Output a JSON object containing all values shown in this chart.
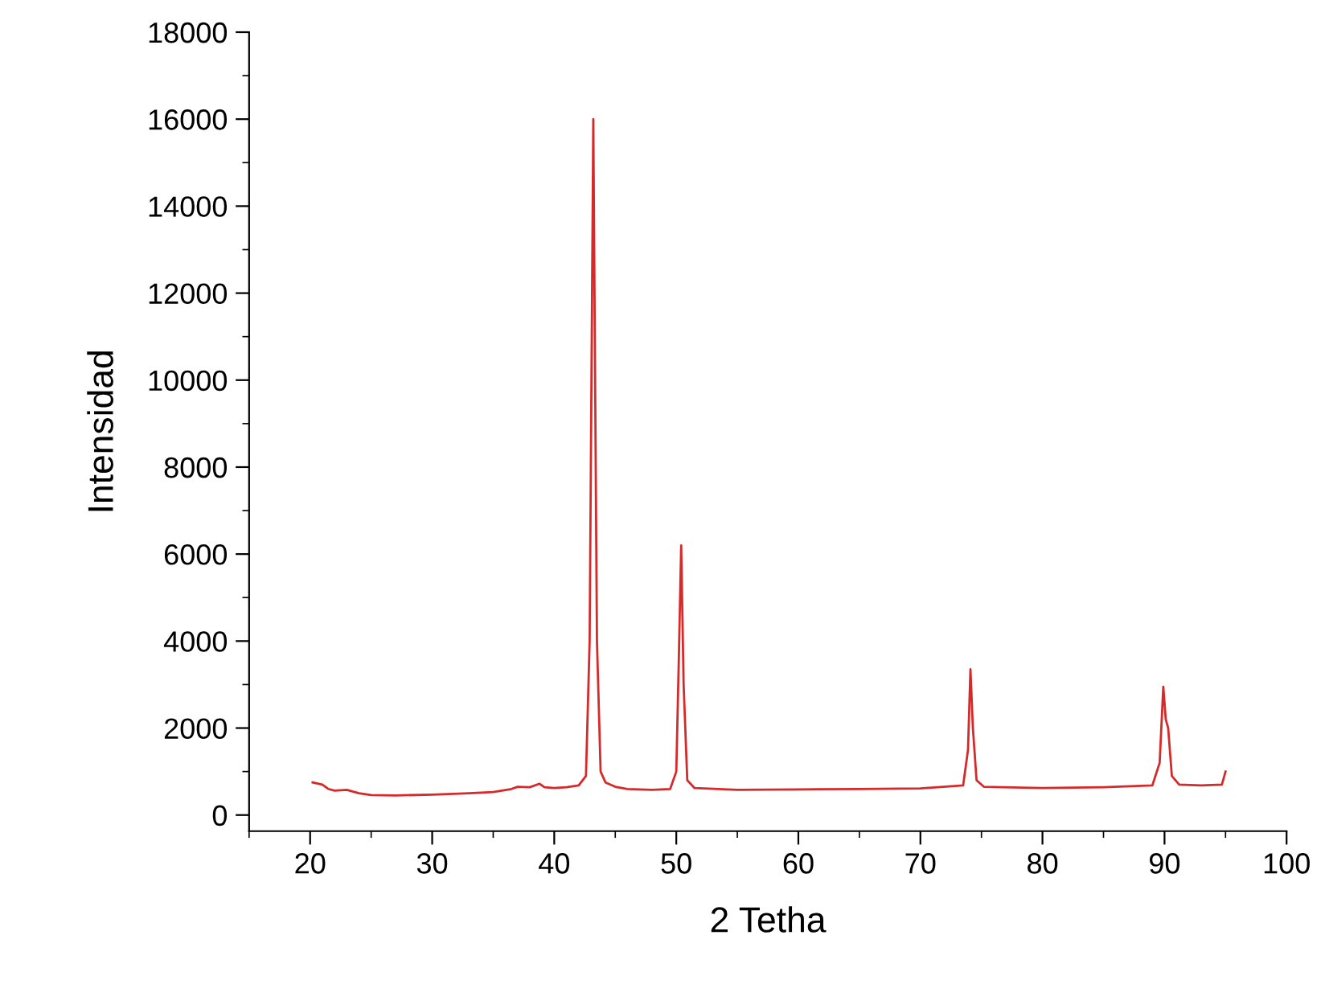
{
  "chart_data": {
    "type": "line",
    "xlabel": "2 Tetha",
    "ylabel": "Intensidad",
    "xlim": [
      15,
      100
    ],
    "ylim": [
      -370,
      18000
    ],
    "xticks": [
      20,
      30,
      40,
      50,
      60,
      70,
      80,
      90,
      100
    ],
    "yticks": [
      0,
      2000,
      4000,
      6000,
      8000,
      10000,
      12000,
      14000,
      16000,
      18000
    ],
    "grid": false,
    "legend": false,
    "marker": "none",
    "line_style": "solid",
    "series": [
      {
        "color": "#d62a2a",
        "x": [
          20.2,
          21,
          21.5,
          22,
          23,
          24,
          25,
          27,
          30,
          33,
          35,
          36.5,
          37,
          38,
          38.8,
          39.2,
          40,
          41,
          42,
          42.6,
          42.9,
          43.2,
          43.5,
          43.8,
          44.2,
          45,
          46,
          48,
          49.5,
          50,
          50.2,
          50.4,
          50.6,
          50.9,
          51.5,
          55,
          60,
          65,
          70,
          73.5,
          73.9,
          74.1,
          74.3,
          74.6,
          75.2,
          80,
          85,
          89,
          89.6,
          89.9,
          90.1,
          90.3,
          90.6,
          91.2,
          93,
          94.7,
          95
        ],
        "values": [
          750,
          700,
          600,
          560,
          580,
          500,
          460,
          450,
          470,
          500,
          530,
          600,
          650,
          640,
          720,
          640,
          620,
          640,
          680,
          900,
          4000,
          16000,
          4000,
          1000,
          750,
          650,
          600,
          580,
          600,
          1000,
          3500,
          6200,
          3000,
          800,
          620,
          580,
          590,
          600,
          610,
          680,
          1500,
          3350,
          2000,
          800,
          650,
          620,
          640,
          680,
          1200,
          2950,
          2200,
          2000,
          900,
          700,
          680,
          700,
          1000
        ]
      }
    ]
  }
}
